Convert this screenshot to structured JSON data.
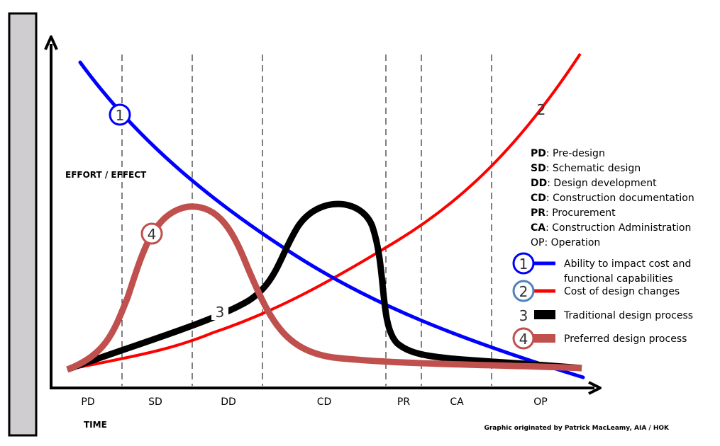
{
  "axes": {
    "y_label": "EFFORT / EFFECT",
    "x_label": "TIME"
  },
  "phases": [
    "PD",
    "SD",
    "DD",
    "CD",
    "PR",
    "CA",
    "OP"
  ],
  "glossary": [
    {
      "abbr": "PD",
      "text": ": Pre-design"
    },
    {
      "abbr": "SD",
      "text": ": Schematic design"
    },
    {
      "abbr": "DD",
      "text": ": Design development"
    },
    {
      "abbr": "CD",
      "text": ": Construction documentation"
    },
    {
      "abbr": "PR",
      "text": ": Procurement"
    },
    {
      "abbr": "CA",
      "text": ": Construction Administration"
    },
    {
      "abbr": "",
      "text": "OP: Operation"
    }
  ],
  "legend": [
    {
      "num": "1",
      "line1": "Ability to impact cost and",
      "line2": "functional capabilities",
      "color": "#0000ff",
      "ring": "#0000ff"
    },
    {
      "num": "2",
      "line1": "Cost of design changes",
      "color": "#ff0000",
      "ring": "#4f81bd"
    },
    {
      "num": "3",
      "line1": "Traditional design process",
      "color": "#000000"
    },
    {
      "num": "4",
      "line1": "Preferred design process",
      "color": "#c0504d",
      "ring": "#c0504d"
    }
  ],
  "curve_labels": {
    "c1": "1",
    "c2": "2",
    "c3": "3",
    "c4": "4"
  },
  "credit": "Graphic originated by Patrick MacLeamy, AIA / HOK"
}
